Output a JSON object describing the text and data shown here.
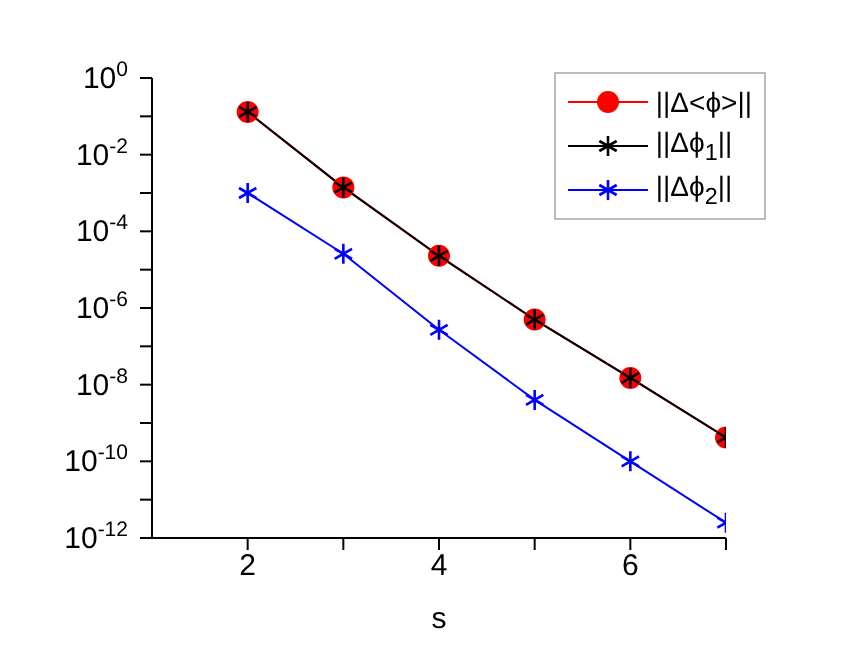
{
  "chart_data": {
    "type": "line",
    "xlabel": "s",
    "x": [
      2,
      3,
      4,
      5,
      6,
      7
    ],
    "series": [
      {
        "name": "||Δ<ϕ>||",
        "color": "#ff0000",
        "marker": "circle",
        "values": [
          0.13,
          0.0014,
          2.3e-05,
          5e-07,
          1.5e-08,
          4.2e-10
        ]
      },
      {
        "name": "||Δϕ$_{1}$||",
        "color": "#000000",
        "marker": "cross",
        "values": [
          0.13,
          0.0014,
          2.3e-05,
          5e-07,
          1.5e-08,
          4.2e-10
        ]
      },
      {
        "name": "||Δϕ$_{2}$||",
        "color": "#0000ff",
        "marker": "cross",
        "values": [
          0.001,
          2.6e-05,
          2.7e-07,
          4e-09,
          1e-10,
          2.5e-12
        ]
      }
    ],
    "log": "y",
    "xlim": [
      1,
      7
    ],
    "xticks": [
      2,
      {
        "value": 3,
        "label": null
      },
      4,
      {
        "value": 5,
        "label": null
      },
      6,
      {
        "value": 7,
        "label": null
      }
    ],
    "ylim": [
      1e-12,
      1
    ],
    "yticks": [
      {
        "value": 1e-12,
        "label": "10$^{-12}$"
      },
      {
        "value": 1e-11,
        "label": null
      },
      {
        "value": 1e-10,
        "label": "10$^{-10}$"
      },
      {
        "value": 1e-09,
        "label": null
      },
      {
        "value": 1e-08,
        "label": "10$^{-8}$"
      },
      {
        "value": 1e-07,
        "label": null
      },
      {
        "value": 1e-06,
        "label": "10$^{-6}$"
      },
      {
        "value": 1e-05,
        "label": null
      },
      {
        "value": 0.0001,
        "label": "10$^{-4}$"
      },
      {
        "value": 0.001,
        "label": null
      },
      {
        "value": 0.01,
        "label": "10$^{-2}$"
      },
      {
        "value": 0.1,
        "label": null
      },
      {
        "value": 1,
        "label": "10$^{0}$"
      }
    ],
    "grid": false,
    "legend": "top right",
    "line_style": "solid"
  }
}
